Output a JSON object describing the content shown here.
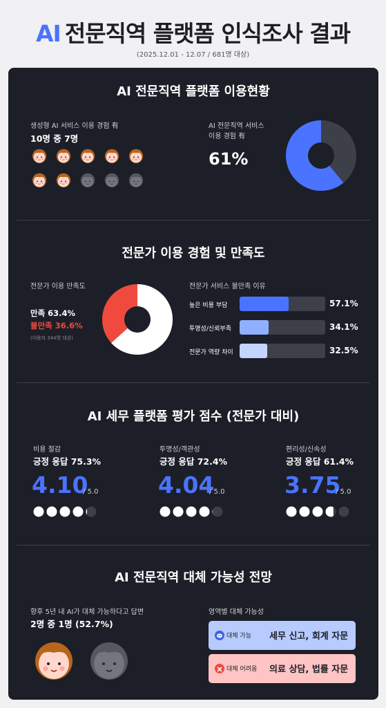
{
  "header": {
    "title_ai": "AI",
    "title_rest": "전문직역 플랫폼 인식조사 결과",
    "subtitle": "(2025.12.01 - 12.07 / 681명 대상)"
  },
  "section1": {
    "title": "AI 전문직역 플랫폼 이용현황",
    "gen_ai_label": "생성형 AI 서비스 이용 경험 有",
    "gen_ai_value": "10명 중 7명",
    "gen_ai_ratio": 0.7,
    "pro_label_1": "AI 전문직역 서비스",
    "pro_label_2": "이용 경험 有",
    "pro_value": "61%",
    "pro_percent": 61,
    "colors": {
      "accent": "#4a73ff",
      "rest": "#3d4049"
    }
  },
  "section2": {
    "title": "전문가 이용 경험 및 만족도",
    "sat_label": "전문가 이용 만족도",
    "satisfied": "만족 63.4%",
    "unsatisfied": "불만족 36.6%",
    "note": "(이용자 344명 대상)",
    "satisfied_pct": 63.4,
    "unsatisfied_pct": 36.6,
    "reasons_label": "전문가 서비스 불만족 이유",
    "reasons": [
      {
        "label": "높은 비용 부담",
        "value": "57.1%",
        "pct": 57.1,
        "color": "#4a73ff"
      },
      {
        "label": "투명성/신뢰부족",
        "value": "34.1%",
        "pct": 34.1,
        "color": "#8fb0ff"
      },
      {
        "label": "전문가 역량 차이",
        "value": "32.5%",
        "pct": 32.5,
        "color": "#c4d6ff"
      }
    ],
    "colors": {
      "satisfied": "#ffffff",
      "unsatisfied": "#f04a3e"
    }
  },
  "section3": {
    "title": "AI 세무 플랫폼 평가 점수 (전문가 대비)",
    "items": [
      {
        "label": "비용 절감",
        "positive": "긍정 응답 75.3%",
        "score": "4.10",
        "max": "/ 5.0",
        "rating": 4.1
      },
      {
        "label": "투명성/객관성",
        "positive": "긍정 응답 72.4%",
        "score": "4.04",
        "max": "/ 5.0",
        "rating": 4.04
      },
      {
        "label": "편리성/신속성",
        "positive": "긍정 응답 61.4%",
        "score": "3.75",
        "max": "/ 5.0",
        "rating": 3.75
      }
    ]
  },
  "section4": {
    "title": "AI 전문직역 대체 가능성 전망",
    "label": "향후 5년 내 AI가 대체 가능하다고 답변",
    "value": "2명 중 1명 (52.7%)",
    "area_label": "영역별 대체 가능성",
    "possible_tag": "대체 가능",
    "possible_text": "세무 신고, 회계 자문",
    "hard_tag": "대체 어려움",
    "hard_text": "의료 상담, 법률 자문",
    "colors": {
      "possible_bg": "#b7cbff",
      "hard_bg": "#ffc4c4"
    }
  }
}
